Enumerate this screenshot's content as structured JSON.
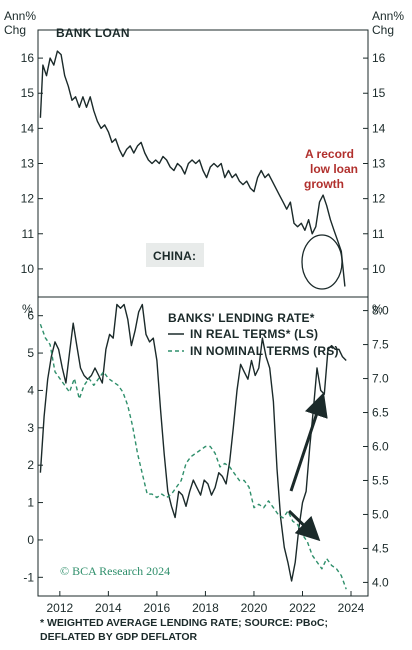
{
  "chart_data": [
    {
      "type": "line",
      "title": "BANK LOAN",
      "unit_left": "Ann% Chg",
      "unit_right": "Ann% Chg",
      "ylim": [
        9.2,
        16.8
      ],
      "yticks": [
        10,
        11,
        12,
        13,
        14,
        15,
        16
      ],
      "badge": "CHINA:",
      "annotation": [
        "A record",
        "low loan",
        "growth"
      ],
      "annotation_color": "#b1302d",
      "line_color": "#1b2a2a",
      "series": [
        {
          "name": "",
          "x": [
            2011.2,
            2011.3,
            2011.45,
            2011.6,
            2011.75,
            2011.9,
            2012.05,
            2012.2,
            2012.35,
            2012.5,
            2012.65,
            2012.8,
            2012.95,
            2013.1,
            2013.25,
            2013.4,
            2013.55,
            2013.7,
            2013.85,
            2014.0,
            2014.15,
            2014.3,
            2014.45,
            2014.6,
            2014.75,
            2014.9,
            2015.05,
            2015.2,
            2015.35,
            2015.5,
            2015.65,
            2015.8,
            2015.95,
            2016.1,
            2016.25,
            2016.4,
            2016.55,
            2016.7,
            2016.85,
            2017.0,
            2017.15,
            2017.3,
            2017.45,
            2017.6,
            2017.75,
            2017.9,
            2018.05,
            2018.2,
            2018.35,
            2018.5,
            2018.65,
            2018.8,
            2018.95,
            2019.1,
            2019.25,
            2019.4,
            2019.55,
            2019.7,
            2019.85,
            2020.0,
            2020.15,
            2020.3,
            2020.45,
            2020.6,
            2020.75,
            2020.9,
            2021.05,
            2021.2,
            2021.35,
            2021.5,
            2021.65,
            2021.8,
            2021.95,
            2022.1,
            2022.25,
            2022.4,
            2022.55,
            2022.7,
            2022.85,
            2023.0,
            2023.15,
            2023.3,
            2023.45,
            2023.6,
            2023.75
          ],
          "y": [
            14.3,
            15.8,
            15.5,
            16.0,
            15.8,
            16.2,
            16.1,
            15.5,
            15.2,
            14.8,
            14.9,
            14.6,
            14.9,
            14.6,
            14.9,
            14.5,
            14.2,
            14.0,
            14.1,
            13.9,
            13.6,
            13.7,
            13.4,
            13.2,
            13.4,
            13.5,
            13.3,
            13.5,
            13.6,
            13.3,
            13.1,
            13.0,
            13.1,
            13.0,
            13.2,
            13.1,
            12.9,
            12.8,
            13.0,
            12.9,
            12.7,
            13.0,
            13.1,
            13.0,
            13.1,
            12.8,
            12.6,
            12.9,
            13.0,
            12.9,
            13.0,
            12.6,
            12.8,
            12.6,
            12.7,
            12.5,
            12.4,
            12.5,
            12.3,
            12.2,
            12.6,
            12.8,
            12.6,
            12.7,
            12.5,
            12.3,
            12.1,
            11.9,
            11.7,
            11.9,
            11.3,
            11.2,
            11.3,
            11.1,
            11.4,
            11.0,
            11.2,
            11.9,
            12.1,
            11.8,
            11.4,
            11.1,
            10.8,
            10.5,
            9.5
          ]
        }
      ]
    },
    {
      "type": "line",
      "title": "BANKS' LENDING RATE*",
      "unit_left": "%",
      "unit_right": "%",
      "ylim_left": [
        -1.5,
        6.5
      ],
      "yticks_left": [
        -1,
        0,
        1,
        2,
        3,
        4,
        5,
        6
      ],
      "ylim_right": [
        3.8,
        8.2
      ],
      "yticks_right": [
        4.0,
        4.5,
        5.0,
        5.5,
        6.0,
        6.5,
        7.0,
        7.5,
        8.0
      ],
      "xlim": [
        2011.1,
        2024.7
      ],
      "xticks": [
        "2012",
        "2014",
        "2016",
        "2018",
        "2020",
        "2022",
        "2024"
      ],
      "xtick_values": [
        2012,
        2014,
        2016,
        2018,
        2020,
        2022,
        2024
      ],
      "series": [
        {
          "name": "IN REAL TERMS* (LS)",
          "axis": "left",
          "color": "#1b2a2a",
          "style": "solid",
          "x": [
            2011.2,
            2011.35,
            2011.5,
            2011.65,
            2011.8,
            2011.95,
            2012.1,
            2012.25,
            2012.4,
            2012.55,
            2012.7,
            2012.85,
            2013.0,
            2013.15,
            2013.3,
            2013.45,
            2013.6,
            2013.75,
            2013.9,
            2014.05,
            2014.2,
            2014.35,
            2014.5,
            2014.65,
            2014.8,
            2014.95,
            2015.1,
            2015.25,
            2015.4,
            2015.55,
            2015.7,
            2015.85,
            2016.0,
            2016.15,
            2016.3,
            2016.45,
            2016.6,
            2016.75,
            2016.9,
            2017.05,
            2017.2,
            2017.35,
            2017.5,
            2017.65,
            2017.8,
            2017.95,
            2018.1,
            2018.25,
            2018.4,
            2018.55,
            2018.7,
            2018.85,
            2019.0,
            2019.15,
            2019.3,
            2019.45,
            2019.6,
            2019.75,
            2019.9,
            2020.05,
            2020.2,
            2020.35,
            2020.5,
            2020.65,
            2020.8,
            2020.95,
            2021.1,
            2021.25,
            2021.4,
            2021.55,
            2021.7,
            2021.85,
            2022.0,
            2022.15,
            2022.3,
            2022.45,
            2022.6,
            2022.75,
            2022.9,
            2023.05,
            2023.2,
            2023.35,
            2023.5,
            2023.65,
            2023.8
          ],
          "y": [
            1.8,
            3.3,
            4.3,
            4.9,
            5.3,
            5.1,
            4.6,
            4.2,
            5.0,
            5.8,
            5.2,
            4.6,
            4.4,
            4.3,
            4.4,
            4.6,
            4.4,
            4.2,
            5.1,
            5.5,
            5.4,
            6.3,
            6.2,
            6.3,
            5.9,
            5.2,
            5.6,
            6.1,
            6.3,
            5.5,
            5.3,
            5.4,
            4.8,
            3.5,
            2.3,
            1.3,
            0.9,
            0.6,
            1.3,
            1.2,
            0.9,
            1.3,
            1.6,
            1.4,
            1.2,
            1.6,
            1.5,
            1.2,
            1.4,
            1.8,
            1.7,
            1.5,
            2.1,
            3.0,
            4.0,
            4.7,
            4.5,
            4.3,
            4.8,
            4.4,
            4.6,
            5.4,
            4.9,
            4.6,
            3.7,
            1.9,
            0.6,
            -0.2,
            -0.6,
            -1.1,
            -0.6,
            0.3,
            1.0,
            1.3,
            2.5,
            3.5,
            4.6,
            4.0,
            3.9,
            5.1,
            5.2,
            5.1,
            5.1,
            4.9,
            4.8
          ]
        },
        {
          "name": "IN NOMINAL TERMS (RS)",
          "axis": "right",
          "color": "#2f8f6b",
          "style": "dashed",
          "x": [
            2011.2,
            2011.4,
            2011.6,
            2011.8,
            2012.0,
            2012.2,
            2012.4,
            2012.6,
            2012.8,
            2013.0,
            2013.2,
            2013.4,
            2013.6,
            2013.8,
            2014.0,
            2014.2,
            2014.4,
            2014.6,
            2014.8,
            2015.0,
            2015.2,
            2015.4,
            2015.6,
            2015.8,
            2016.0,
            2016.2,
            2016.4,
            2016.6,
            2016.8,
            2017.0,
            2017.2,
            2017.4,
            2017.6,
            2017.8,
            2018.0,
            2018.2,
            2018.4,
            2018.6,
            2018.8,
            2019.0,
            2019.2,
            2019.4,
            2019.6,
            2019.8,
            2020.0,
            2020.2,
            2020.4,
            2020.6,
            2020.8,
            2021.0,
            2021.2,
            2021.4,
            2021.6,
            2021.8,
            2022.0,
            2022.2,
            2022.4,
            2022.6,
            2022.8,
            2023.0,
            2023.2,
            2023.4,
            2023.6,
            2023.8
          ],
          "y": [
            7.8,
            7.6,
            7.5,
            7.1,
            7.0,
            6.9,
            6.8,
            7.0,
            6.7,
            6.9,
            7.0,
            6.9,
            7.0,
            7.1,
            7.0,
            6.95,
            6.9,
            6.8,
            6.6,
            6.3,
            5.9,
            5.6,
            5.3,
            5.3,
            5.25,
            5.3,
            5.25,
            5.3,
            5.4,
            5.5,
            5.75,
            5.85,
            5.9,
            5.95,
            6.0,
            6.0,
            5.9,
            5.7,
            5.75,
            5.7,
            5.6,
            5.5,
            5.5,
            5.4,
            5.1,
            5.15,
            5.1,
            5.2,
            5.1,
            5.0,
            4.95,
            5.05,
            4.9,
            4.85,
            4.7,
            4.6,
            4.4,
            4.3,
            4.2,
            4.35,
            4.25,
            4.2,
            4.1,
            3.9
          ]
        }
      ],
      "logo": "© BCA Research 2024"
    }
  ],
  "footnote": [
    "* WEIGHTED AVERAGE LENDING RATE; SOURCE: PBoC;",
    "DEFLATED BY GDP DEFLATOR"
  ]
}
